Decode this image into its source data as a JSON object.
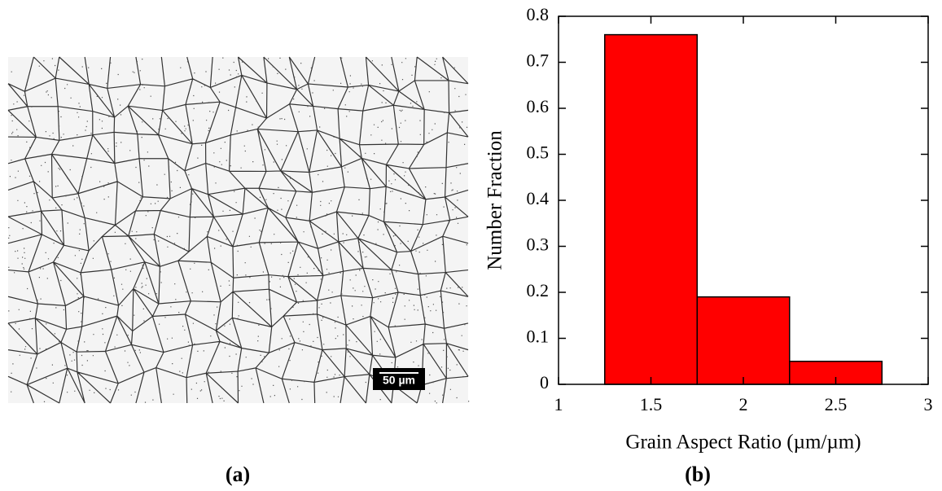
{
  "figure": {
    "panel_labels": [
      "(a)",
      "(b)"
    ],
    "scale_bar": "50 µm"
  },
  "chart_data": {
    "type": "histogram",
    "xlabel": "Grain Aspect Ratio (µm/µm)",
    "ylabel": "Number Fraction",
    "bins": [
      1.25,
      1.75,
      2.25,
      2.75
    ],
    "values": [
      0.76,
      0.19,
      0.05
    ],
    "color": "#ff0000",
    "xlim": [
      1,
      3
    ],
    "xticks": [
      1,
      1.5,
      2,
      2.5,
      3
    ],
    "ylim": [
      0,
      0.8
    ],
    "yticks": [
      0,
      0.1,
      0.2,
      0.3,
      0.4,
      0.5,
      0.6,
      0.7,
      0.8
    ]
  }
}
